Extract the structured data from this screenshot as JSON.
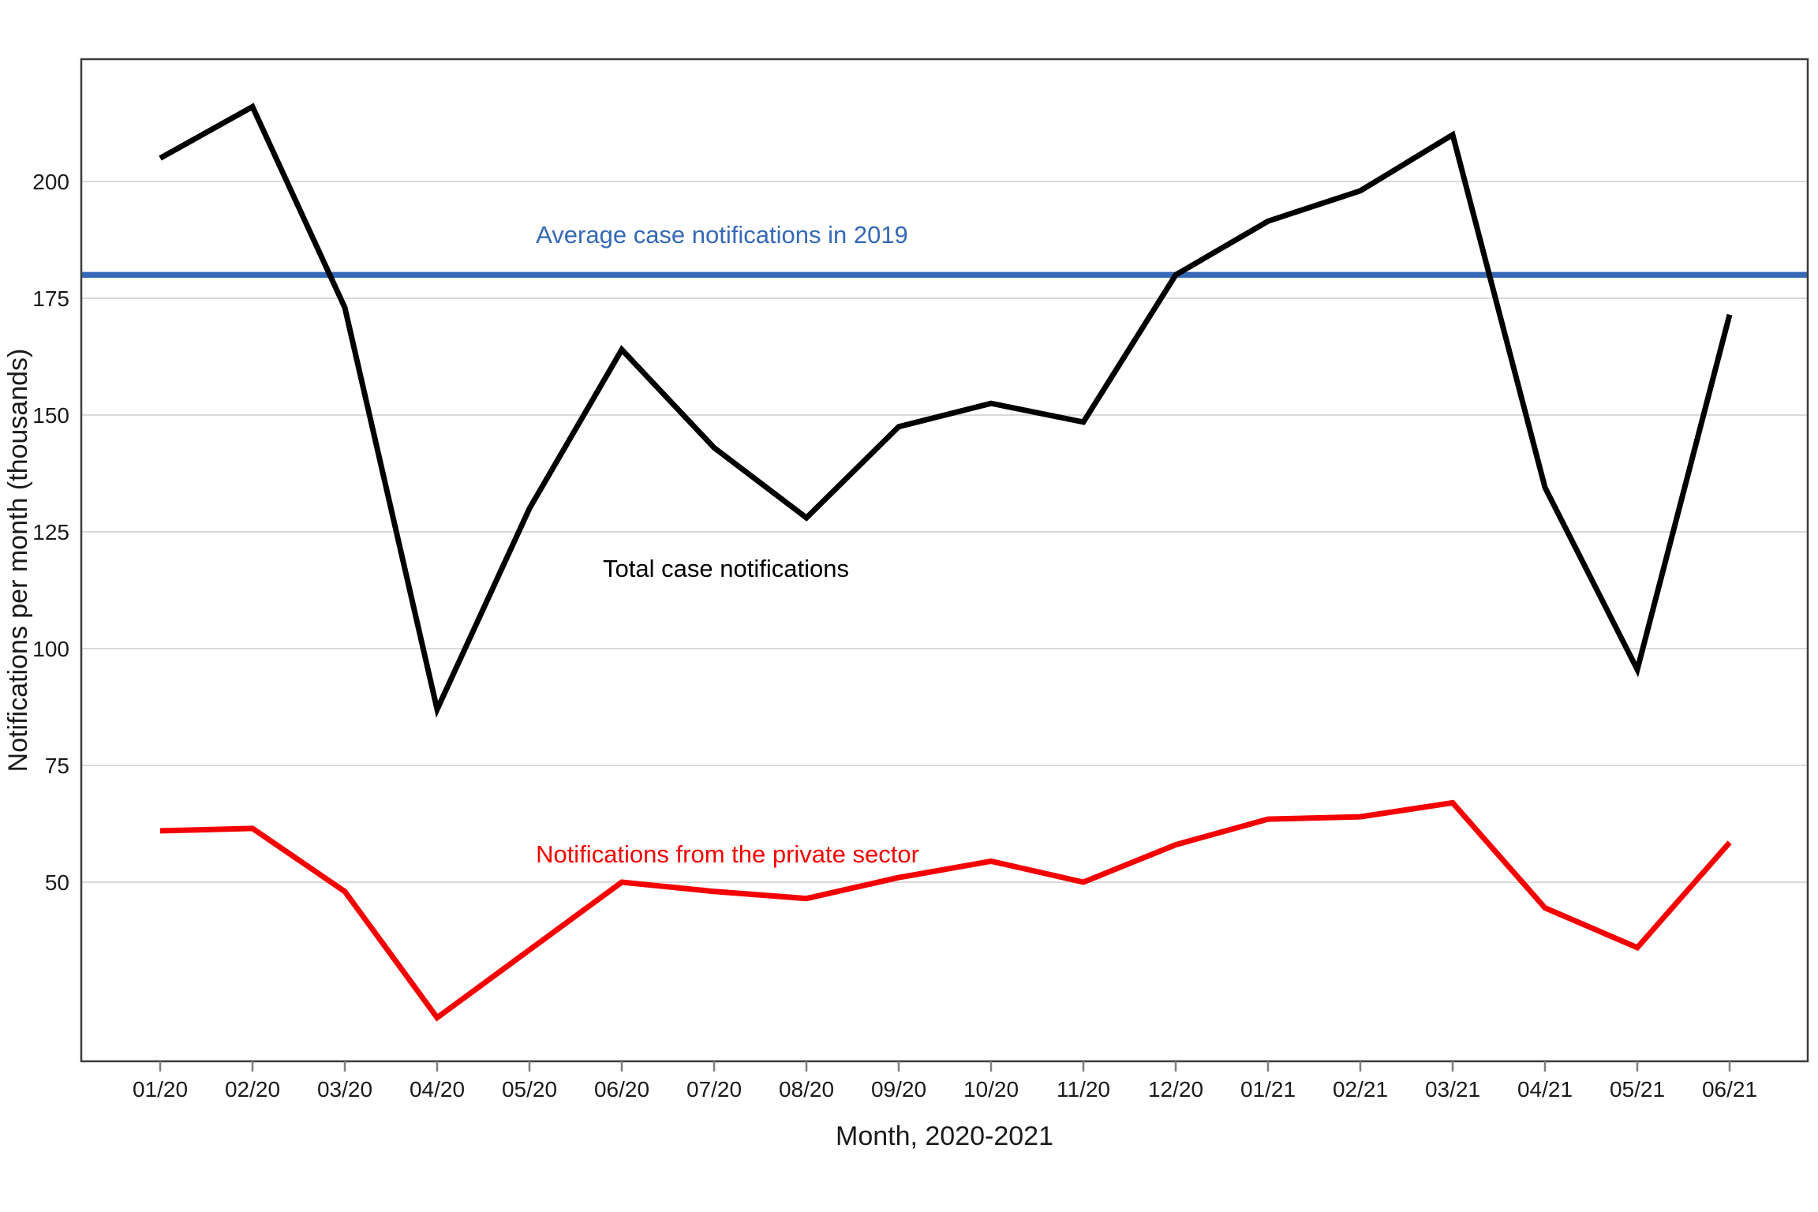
{
  "chart_data": {
    "type": "line",
    "title": "",
    "xlabel": "Month, 2020-2021",
    "ylabel": "Notifications per month (thousands)",
    "x_categories": [
      "01/20",
      "02/20",
      "03/20",
      "04/20",
      "05/20",
      "06/20",
      "07/20",
      "08/20",
      "09/20",
      "10/20",
      "11/20",
      "12/20",
      "01/21",
      "02/21",
      "03/21",
      "04/21",
      "05/21",
      "06/21"
    ],
    "y_ticks": [
      50,
      75,
      100,
      125,
      150,
      175,
      200
    ],
    "ylim": [
      11.5,
      226
    ],
    "grid": "horizontal-only",
    "legend_position": "inline-annotations",
    "series": [
      {
        "name": "Total case notifications",
        "color": "#000000",
        "values": [
          205,
          216,
          173,
          87,
          130,
          164,
          143,
          128,
          147.5,
          152.5,
          148.5,
          180,
          191.5,
          198,
          210,
          134.5,
          95.5,
          171.5
        ]
      },
      {
        "name": "Notifications from the private sector",
        "color": "#f40000",
        "values": [
          61,
          61.5,
          48,
          21,
          35.5,
          50,
          48,
          46.5,
          51,
          54.5,
          50,
          58,
          63.5,
          64,
          67,
          44.5,
          36,
          58.5
        ]
      }
    ],
    "reference_line": {
      "label": "Average case notifications in 2019",
      "value": 180,
      "color": "#3569b5"
    },
    "colors": {
      "gridline": "#d9d9d9",
      "plot_border": "#3c3c3c",
      "tick_mark": "#7f7f7f"
    }
  }
}
